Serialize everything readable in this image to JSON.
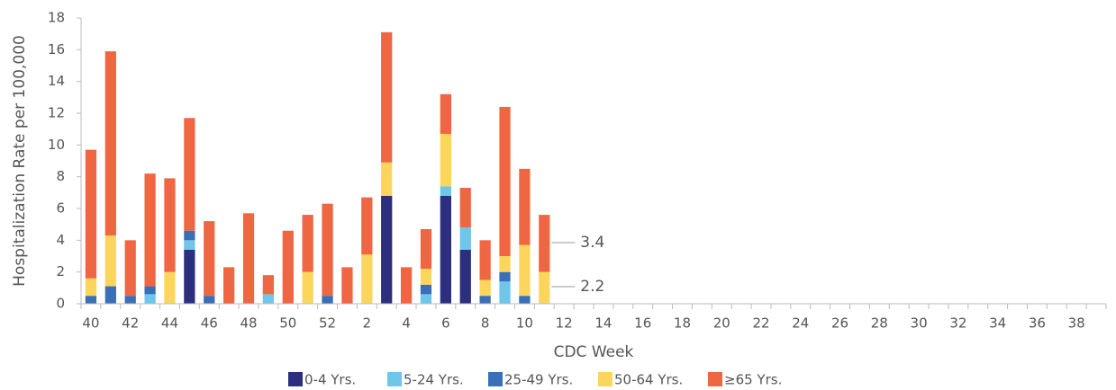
{
  "chart_data": {
    "type": "stacked_bar",
    "x_label": "CDC Week",
    "y_label": "Hospitalization Rate per 100,000",
    "categories": [
      "40",
      null,
      "42",
      null,
      "44",
      null,
      "46",
      null,
      "48",
      null,
      "50",
      null,
      "52",
      null,
      "2",
      null,
      "4",
      null,
      "6",
      null,
      "8",
      null,
      "10",
      null,
      "12",
      null,
      "14",
      null,
      "16",
      null,
      "18",
      null,
      "20",
      null,
      "22",
      null,
      "24",
      null,
      "26",
      null,
      "28",
      null,
      "30",
      null,
      "32",
      null,
      "34",
      null,
      "36",
      null,
      "38",
      null
    ],
    "series": [
      {
        "name": "0-4 Yrs.",
        "color": "#2b2f7e",
        "values": [
          0,
          0,
          0,
          0,
          0,
          3.4,
          0,
          0,
          0,
          0,
          0,
          0,
          0,
          0,
          0,
          6.8,
          0,
          0,
          6.8,
          3.4,
          0,
          0,
          0,
          0,
          null,
          null,
          null,
          null,
          null,
          null,
          null,
          null,
          null,
          null,
          null,
          null,
          null,
          null,
          null,
          null,
          null,
          null,
          null,
          null,
          null,
          null,
          null,
          null,
          null,
          null,
          null,
          null
        ]
      },
      {
        "name": "5-24 Yrs.",
        "color": "#6ec6ea",
        "values": [
          0,
          0,
          0,
          0.6,
          0,
          0.6,
          0,
          0,
          0,
          0.6,
          0,
          0,
          0,
          0,
          0,
          0,
          0,
          0.6,
          0.6,
          1.4,
          0,
          1.4,
          0,
          0,
          null,
          null,
          null,
          null,
          null,
          null,
          null,
          null,
          null,
          null,
          null,
          null,
          null,
          null,
          null,
          null,
          null,
          null,
          null,
          null,
          null,
          null,
          null,
          null,
          null,
          null,
          null,
          null
        ]
      },
      {
        "name": "25-49 Yrs.",
        "color": "#3a6fb7",
        "values": [
          0.5,
          1.1,
          0.5,
          0.5,
          0,
          0.6,
          0.5,
          0,
          0,
          0,
          0,
          0,
          0.5,
          0,
          0,
          0,
          0,
          0.6,
          0,
          0,
          0.5,
          0.6,
          0.5,
          0,
          null,
          null,
          null,
          null,
          null,
          null,
          null,
          null,
          null,
          null,
          null,
          null,
          null,
          null,
          null,
          null,
          null,
          null,
          null,
          null,
          null,
          null,
          null,
          null,
          null,
          null,
          null,
          null
        ]
      },
      {
        "name": "50-64 Yrs.",
        "color": "#fcd65c",
        "values": [
          1.1,
          3.2,
          0,
          0,
          2.0,
          0,
          0,
          0,
          0,
          0,
          0,
          2.0,
          0,
          0,
          3.1,
          2.1,
          0,
          1.0,
          3.3,
          0,
          1.0,
          1.0,
          3.2,
          2.0,
          null,
          null,
          null,
          null,
          null,
          null,
          null,
          null,
          null,
          null,
          null,
          null,
          null,
          null,
          null,
          null,
          null,
          null,
          null,
          null,
          null,
          null,
          null,
          null,
          null,
          null,
          null,
          null
        ]
      },
      {
        "name": "≥65 Yrs.",
        "color": "#ef6643",
        "values": [
          8.1,
          11.6,
          3.5,
          7.1,
          5.9,
          7.1,
          4.7,
          2.3,
          5.7,
          1.2,
          4.6,
          3.6,
          5.8,
          2.3,
          3.6,
          8.2,
          2.3,
          2.5,
          2.5,
          2.5,
          2.5,
          9.4,
          4.8,
          3.6,
          null,
          null,
          null,
          null,
          null,
          null,
          null,
          null,
          null,
          null,
          null,
          null,
          null,
          null,
          null,
          null,
          null,
          null,
          null,
          null,
          null,
          null,
          null,
          null,
          null,
          null,
          null,
          null
        ]
      }
    ],
    "annotations": [
      "3.4",
      "2.2"
    ],
    "ylim": [
      0,
      18
    ],
    "yticks": [
      0,
      2,
      4,
      6,
      8,
      10,
      12,
      14,
      16,
      18
    ],
    "grid": false,
    "legend": "bottom"
  }
}
